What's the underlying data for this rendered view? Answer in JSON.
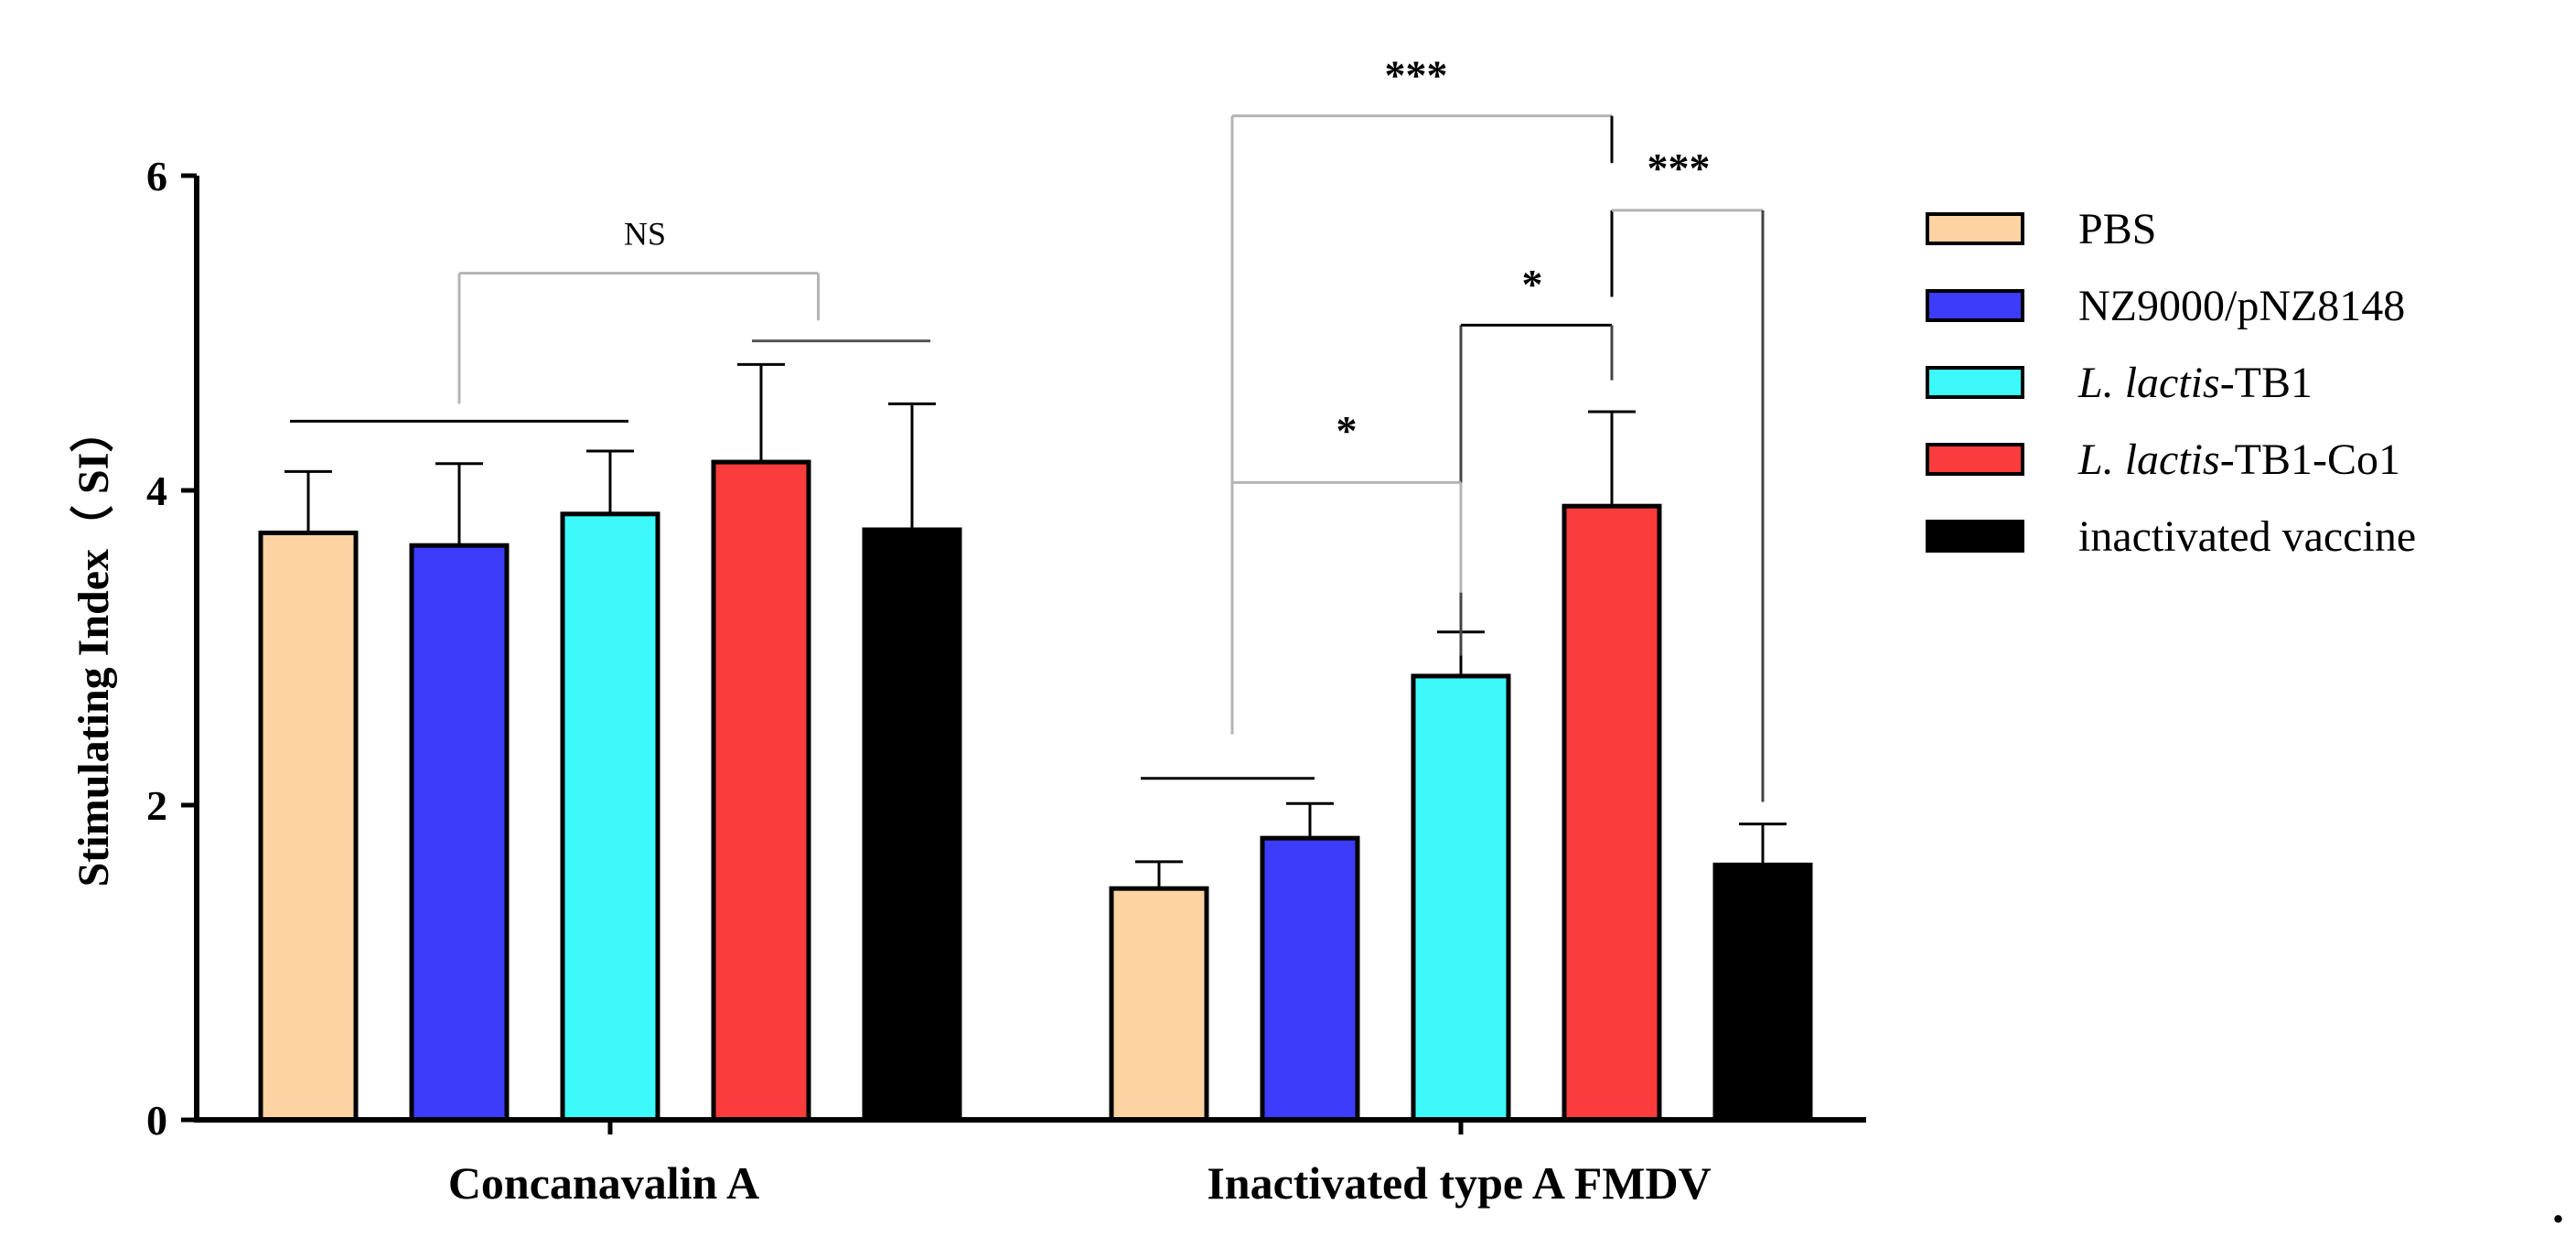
{
  "chart_data": {
    "type": "bar",
    "ylabel": "Stimulating Index（ SI）",
    "xlabel": "",
    "ylim": [
      0,
      6
    ],
    "yticks": [
      "0",
      "2",
      "4",
      "6"
    ],
    "grid": false,
    "legend_position": "right",
    "categories": [
      "Concanavalin A",
      "Inactivated type A FMDV"
    ],
    "series": [
      {
        "name": "PBS",
        "name_prefix": "",
        "name_suffix": "PBS",
        "color": "#FDD3A3",
        "values": [
          3.73,
          1.47
        ],
        "errors": [
          0.39,
          0.17
        ]
      },
      {
        "name": "NZ9000/pNZ8148",
        "name_prefix": "",
        "name_suffix": "NZ9000/pNZ8148",
        "color": "#3C3CFA",
        "values": [
          3.65,
          1.79
        ],
        "errors": [
          0.52,
          0.22
        ]
      },
      {
        "name": "L. lactis-TB1",
        "name_prefix": "L. lactis",
        "name_suffix": "-TB1",
        "color": "#3CFAFA",
        "values": [
          3.85,
          2.82
        ],
        "errors": [
          0.4,
          0.28
        ]
      },
      {
        "name": "L. lactis-TB1-Co1",
        "name_prefix": "L. lactis",
        "name_suffix": "-TB1-Co1",
        "color": "#FA3C3C",
        "values": [
          4.18,
          3.9
        ],
        "errors": [
          0.62,
          0.6
        ]
      },
      {
        "name": "inactivated vaccine",
        "name_prefix": "",
        "name_suffix": "inactivated vaccine",
        "color": "#000000",
        "values": [
          3.75,
          1.62
        ],
        "errors": [
          0.8,
          0.26
        ]
      }
    ],
    "annotations": [
      {
        "label": "NS",
        "style": "ns"
      },
      {
        "label": "***",
        "style": "sig"
      },
      {
        "label": "***",
        "style": "sig"
      },
      {
        "label": "*",
        "style": "sig"
      },
      {
        "label": "*",
        "style": "sig"
      }
    ],
    "trailing_mark": "."
  }
}
